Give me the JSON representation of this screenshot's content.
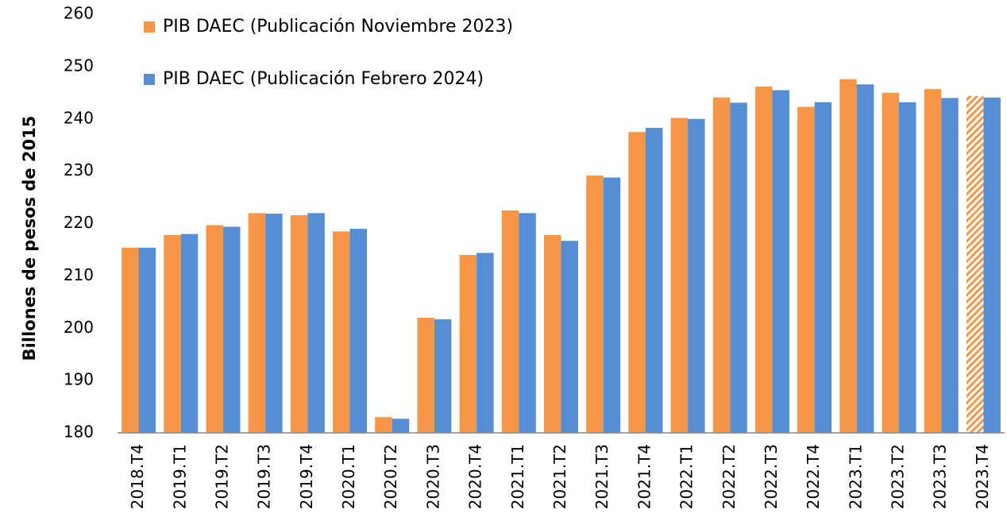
{
  "chart_data": {
    "type": "bar",
    "ylabel": "Billones de pesos de 2015",
    "categories": [
      "2018.T4",
      "2019.T1",
      "2019.T2",
      "2019.T3",
      "2019.T4",
      "2020.T1",
      "2020.T2",
      "2020.T3",
      "2020.T4",
      "2021.T1",
      "2021.T2",
      "2021.T3",
      "2021.T4",
      "2022.T1",
      "2022.T2",
      "2022.T3",
      "2022.T4",
      "2023.T1",
      "2023.T2",
      "2023.T3",
      "2023.T4"
    ],
    "series": [
      {
        "name": "PIB DAEC (Publicación Noviembre 2023)",
        "color": "#f79646",
        "hatched": [
          20
        ],
        "values": [
          215.4,
          217.8,
          219.7,
          222.0,
          221.6,
          218.5,
          183.0,
          202.0,
          214.0,
          222.5,
          217.8,
          229.2,
          237.5,
          240.2,
          244.1,
          246.2,
          242.3,
          247.6,
          245.0,
          245.7,
          244.4
        ]
      },
      {
        "name": "PIB DAEC (Publicación Febrero 2024)",
        "color": "#558ed5",
        "values": [
          215.4,
          218.0,
          219.4,
          221.9,
          222.0,
          219.0,
          182.7,
          201.7,
          214.4,
          222.0,
          216.7,
          228.8,
          238.3,
          240.0,
          243.1,
          245.5,
          243.2,
          246.6,
          243.2,
          244.0,
          244.1
        ]
      }
    ],
    "ylim": [
      180,
      260
    ],
    "yticks": [
      180,
      190,
      200,
      210,
      220,
      230,
      240,
      250,
      260
    ],
    "grid": false
  }
}
